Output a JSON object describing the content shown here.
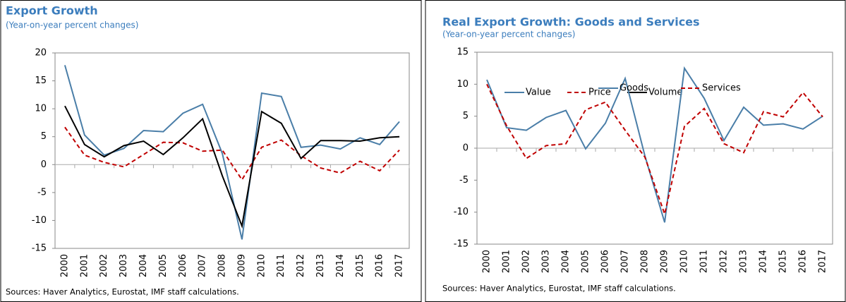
{
  "chart_data": [
    {
      "type": "line",
      "title": "Export Growth",
      "subtitle": "(Year-on-year percent changes)",
      "source": "Sources: Haver Analytics, Eurostat, IMF staff calculations.",
      "categories": [
        "2000",
        "2001",
        "2002",
        "2003",
        "2004",
        "2005",
        "2006",
        "2007",
        "2008",
        "2009",
        "2010",
        "2011",
        "2012",
        "2013",
        "2014",
        "2015",
        "2016",
        "2017"
      ],
      "series": [
        {
          "name": "Value",
          "color": "#4a7ea8",
          "dash": false,
          "values": [
            17.8,
            5.3,
            1.7,
            2.9,
            6.1,
            5.9,
            9.2,
            10.8,
            2.0,
            -13.4,
            12.8,
            12.2,
            3.1,
            3.5,
            2.8,
            4.8,
            3.6,
            7.7
          ]
        },
        {
          "name": "Price",
          "color": "#c00000",
          "dash": true,
          "values": [
            6.7,
            1.7,
            0.4,
            -0.4,
            1.8,
            4.0,
            3.9,
            2.4,
            2.6,
            -2.7,
            3.1,
            4.4,
            1.6,
            -0.6,
            -1.5,
            0.6,
            -1.1,
            2.6
          ]
        },
        {
          "name": "Volume",
          "color": "#000000",
          "dash": false,
          "values": [
            10.5,
            3.6,
            1.4,
            3.4,
            4.2,
            1.8,
            4.8,
            8.2,
            -2.0,
            -11.0,
            9.5,
            7.4,
            1.1,
            4.3,
            4.3,
            4.2,
            4.8,
            5.0
          ]
        }
      ],
      "ylim": [
        -15,
        20
      ],
      "yticks": [
        -15,
        -10,
        -5,
        0,
        5,
        10,
        15,
        20
      ],
      "legend": "top-right"
    },
    {
      "type": "line",
      "title": "Real Export Growth: Goods and Services",
      "subtitle": "(Year-on-year percent changes)",
      "source": "Sources: Haver Analytics, Eurostat, IMF staff calculations.",
      "categories": [
        "2000",
        "2001",
        "2002",
        "2003",
        "2004",
        "2005",
        "2006",
        "2007",
        "2008",
        "2009",
        "2010",
        "2011",
        "2012",
        "2013",
        "2014",
        "2015",
        "2016",
        "2017"
      ],
      "series": [
        {
          "name": "Goods",
          "color": "#4a7ea8",
          "dash": false,
          "values": [
            10.7,
            3.2,
            2.8,
            4.8,
            5.9,
            -0.1,
            3.9,
            10.9,
            -1.2,
            -11.6,
            12.5,
            7.8,
            1.2,
            6.4,
            3.6,
            3.8,
            3.0,
            5.0
          ]
        },
        {
          "name": "Services",
          "color": "#c00000",
          "dash": true,
          "values": [
            10.0,
            3.5,
            -1.6,
            0.4,
            0.7,
            6.0,
            7.2,
            2.8,
            -1.4,
            -10.3,
            3.4,
            6.2,
            0.7,
            -0.7,
            5.7,
            4.9,
            8.7,
            4.9
          ]
        }
      ],
      "ylim": [
        -15,
        15
      ],
      "yticks": [
        -15,
        -10,
        -5,
        0,
        5,
        10,
        15
      ],
      "legend": "top-center"
    }
  ]
}
